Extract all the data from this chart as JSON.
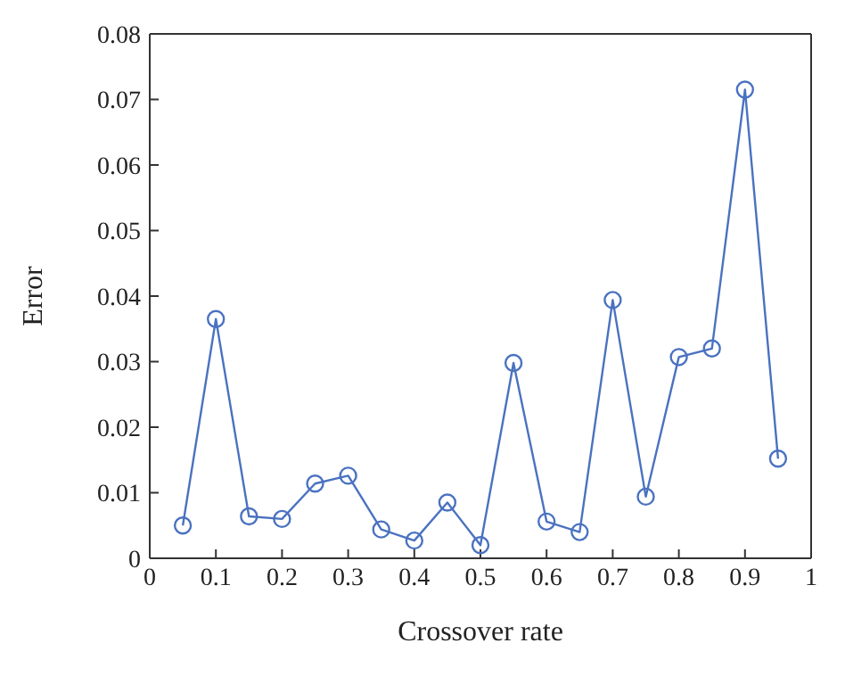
{
  "chart_data": {
    "type": "line",
    "xlabel": "Crossover rate",
    "ylabel": "Error",
    "x": [
      0.05,
      0.1,
      0.15,
      0.2,
      0.25,
      0.3,
      0.35,
      0.4,
      0.45,
      0.5,
      0.55,
      0.6,
      0.65,
      0.7,
      0.75,
      0.8,
      0.85,
      0.9,
      0.95
    ],
    "series": [
      {
        "color": "#4a72c0",
        "values": [
          0.005,
          0.0365,
          0.0064,
          0.006,
          0.0114,
          0.0126,
          0.0044,
          0.0027,
          0.0085,
          0.002,
          0.0298,
          0.0056,
          0.004,
          0.0394,
          0.0094,
          0.0307,
          0.032,
          0.0715,
          0.0152
        ]
      }
    ],
    "xlim": [
      0,
      1
    ],
    "xticks": [
      0,
      0.1,
      0.2,
      0.3,
      0.4,
      0.5,
      0.6,
      0.7,
      0.8,
      0.9,
      1
    ],
    "ylim": [
      0,
      0.08
    ],
    "yticks": [
      0,
      0.01,
      0.02,
      0.03,
      0.04,
      0.05,
      0.06,
      0.07,
      0.08
    ],
    "marker": "circle",
    "line_style": "solid",
    "grid": false,
    "legend": false
  }
}
